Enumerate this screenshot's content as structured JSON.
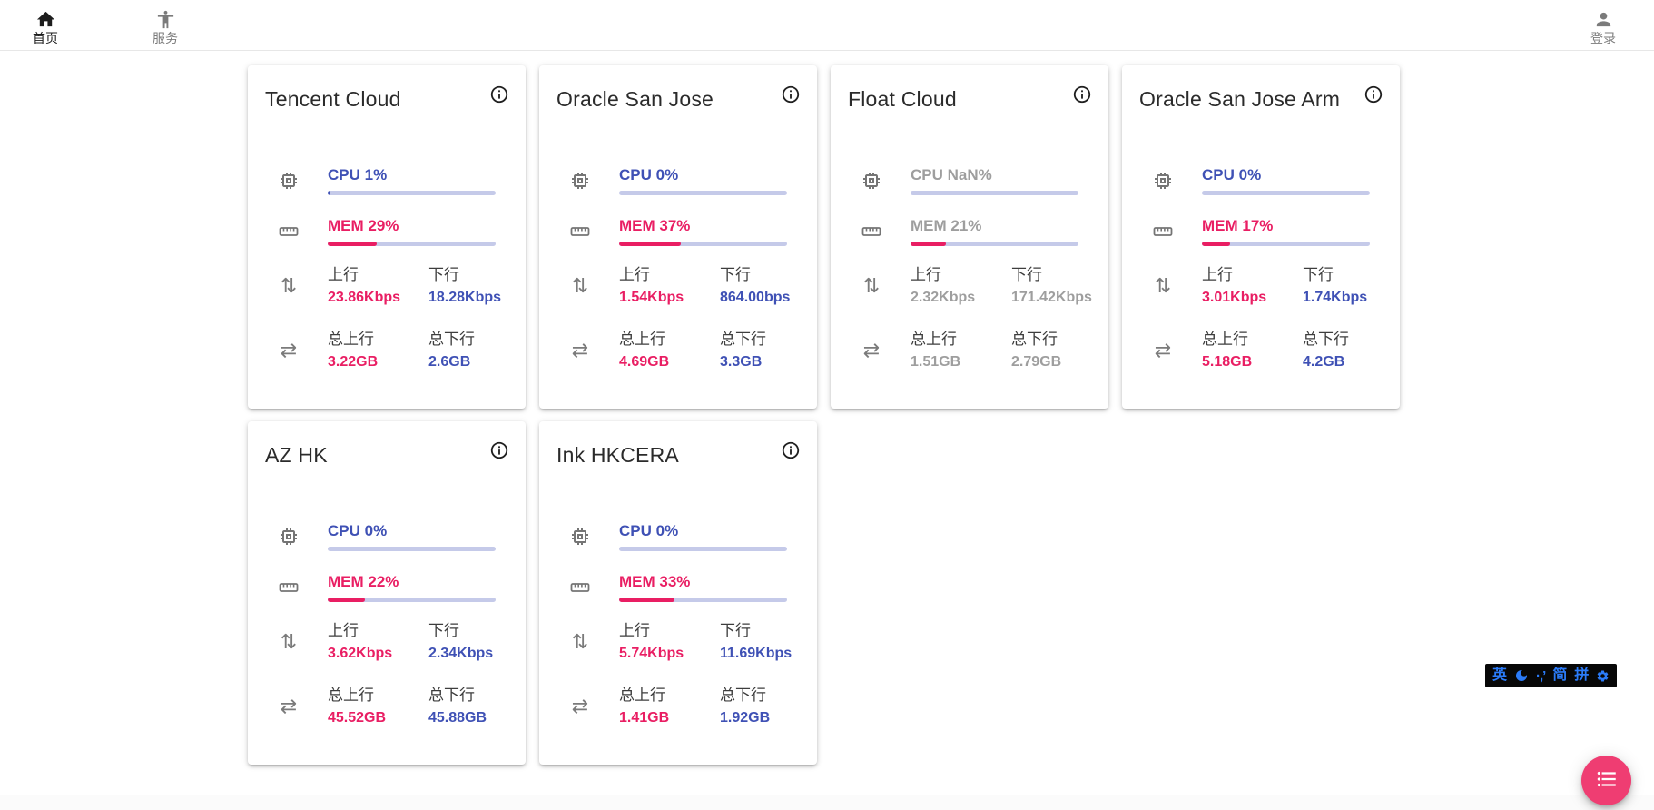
{
  "nav": {
    "home": "首页",
    "services": "服务",
    "login": "登录"
  },
  "labels": {
    "up": "上行",
    "down": "下行",
    "total_up": "总上行",
    "total_down": "总下行"
  },
  "servers": [
    {
      "name": "Tencent Cloud",
      "state": "",
      "cpu_label": "CPU 1%",
      "cpu_pct": 1,
      "mem_label": "MEM 29%",
      "mem_pct": 29,
      "up_speed": "23.86Kbps",
      "down_speed": "18.28Kbps",
      "total_up": "3.22GB",
      "total_down": "2.6GB"
    },
    {
      "name": "Oracle San Jose",
      "state": "",
      "cpu_label": "CPU 0%",
      "cpu_pct": 0,
      "mem_label": "MEM 37%",
      "mem_pct": 37,
      "up_speed": "1.54Kbps",
      "down_speed": "864.00bps",
      "total_up": "4.69GB",
      "total_down": "3.3GB"
    },
    {
      "name": "Float Cloud",
      "state": "stale",
      "cpu_label": "CPU NaN%",
      "cpu_pct": 0,
      "mem_label": "MEM 21%",
      "mem_pct": 21,
      "up_speed": "2.32Kbps",
      "down_speed": "171.42Kbps",
      "total_up": "1.51GB",
      "total_down": "2.79GB"
    },
    {
      "name": "Oracle San Jose Arm",
      "state": "",
      "cpu_label": "CPU 0%",
      "cpu_pct": 0,
      "mem_label": "MEM 17%",
      "mem_pct": 17,
      "up_speed": "3.01Kbps",
      "down_speed": "1.74Kbps",
      "total_up": "5.18GB",
      "total_down": "4.2GB"
    },
    {
      "name": "AZ HK",
      "state": "",
      "cpu_label": "CPU 0%",
      "cpu_pct": 0,
      "mem_label": "MEM 22%",
      "mem_pct": 22,
      "up_speed": "3.62Kbps",
      "down_speed": "2.34Kbps",
      "total_up": "45.52GB",
      "total_down": "45.88GB"
    },
    {
      "name": "Ink HKCERA",
      "state": "",
      "cpu_label": "CPU 0%",
      "cpu_pct": 0,
      "mem_label": "MEM 33%",
      "mem_pct": 33,
      "up_speed": "5.74Kbps",
      "down_speed": "11.69Kbps",
      "total_up": "1.41GB",
      "total_down": "1.92GB"
    }
  ],
  "icons": {
    "updown_arrows": "⇅",
    "leftright_arrows": "⇄",
    "punct": "·,’"
  },
  "ime": {
    "english": "英",
    "simplified": "简",
    "pinyin": "拼"
  },
  "colors": {
    "pink": "#e91e63",
    "indigo": "#3f51b5",
    "track": "#c5cae9",
    "stale": "#9e9e9e",
    "fab": "#ef3d72",
    "imeblue": "#2b7bf8"
  }
}
